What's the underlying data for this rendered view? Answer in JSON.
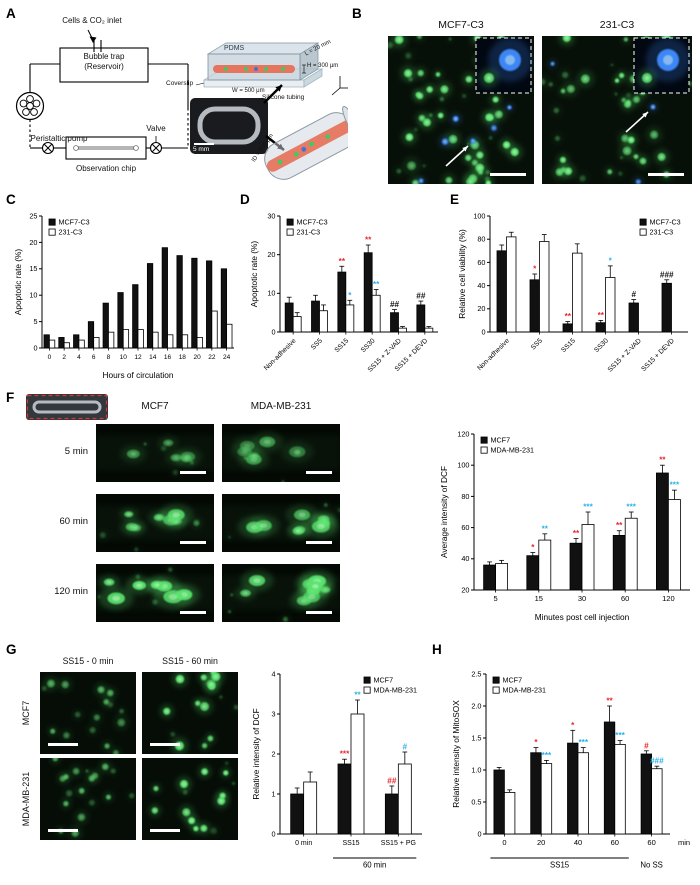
{
  "panels": {
    "A": {
      "label": "A"
    },
    "B": {
      "label": "B",
      "img1_title": "MCF7-C3",
      "img2_title": "231-C3"
    },
    "C": {
      "label": "C"
    },
    "D": {
      "label": "D"
    },
    "E": {
      "label": "E"
    },
    "F": {
      "label": "F",
      "col1": "MCF7",
      "col2": "MDA-MB-231",
      "rows": [
        "5 min",
        "60 min",
        "120 min"
      ]
    },
    "G": {
      "label": "G",
      "col1": "SS15 - 0 min",
      "col2": "SS15 - 60 min",
      "row1": "MCF7",
      "row2": "MDA-MB-231"
    },
    "H": {
      "label": "H"
    }
  },
  "schematic": {
    "inlet": "Cells & CO₂ inlet",
    "bubble_trap": "Bubble trap",
    "reservoir": "(Reservoir)",
    "pump": "Peristaltic pump",
    "valve": "Valve",
    "chip": "Observation chip",
    "pdms": "PDMS",
    "coverslip": "Coverslip",
    "dim_h": "H = 300 μm",
    "dim_w": "W = 500 μm",
    "dim_l": "L = 20 mm",
    "photo_scale": "5 mm",
    "tubing": "Silicone tubing",
    "dim_id": "ID = 500 μm"
  },
  "colors": {
    "sig_red": "#e8262a",
    "sig_blue": "#2bb0e8",
    "bar_black": "#111111",
    "bar_white": "#ffffff",
    "fluor_green": "#5ae36e",
    "fluor_blue": "#3f8cff"
  },
  "chart_data": [
    {
      "id": "C",
      "type": "bar",
      "ylabel": "Apoptotic rate (%)",
      "xlabel": "Hours of circulation",
      "ylim": [
        0,
        25
      ],
      "yticks": [
        0,
        5,
        10,
        15,
        20,
        25
      ],
      "categories": [
        "0",
        "2",
        "4",
        "6",
        "8",
        "10",
        "12",
        "14",
        "16",
        "18",
        "20",
        "22",
        "24"
      ],
      "legend_pos": "top-left",
      "series": [
        {
          "name": "MCF7-C3",
          "fill": "black",
          "values": [
            2.5,
            2.0,
            2.5,
            5.0,
            8.5,
            10.5,
            12.0,
            16.0,
            19.0,
            17.5,
            17.0,
            16.5,
            15.0
          ]
        },
        {
          "name": "231-C3",
          "fill": "white",
          "values": [
            1.5,
            1.0,
            1.5,
            2.0,
            3.0,
            3.5,
            3.5,
            3.0,
            2.5,
            2.5,
            2.0,
            7.0,
            4.5
          ]
        }
      ]
    },
    {
      "id": "D",
      "type": "bar",
      "ylabel": "Apoptotic rate (%)",
      "xlabel": "",
      "ylim": [
        0,
        30
      ],
      "yticks": [
        0,
        10,
        20,
        30
      ],
      "categories": [
        "Non-adhesive",
        "SS5",
        "SS15",
        "SS30",
        "SS15 + Z-VAD",
        "SS15 + DEVD"
      ],
      "legend_pos": "top-left",
      "series": [
        {
          "name": "MCF7-C3",
          "fill": "black",
          "values": [
            7.5,
            8.0,
            15.5,
            20.5,
            5.0,
            7.0
          ],
          "err": [
            1.5,
            1.5,
            1.5,
            2.0,
            0.8,
            1.0
          ],
          "sig": [
            "",
            "",
            "**",
            "**",
            "##",
            "##"
          ],
          "sigc": [
            "",
            "",
            "red",
            "red",
            "black",
            "black"
          ]
        },
        {
          "name": "231-C3",
          "fill": "white",
          "values": [
            4.0,
            5.5,
            7.0,
            9.5,
            1.0,
            1.0
          ],
          "err": [
            1.0,
            1.5,
            1.2,
            1.5,
            0.4,
            0.4
          ],
          "sig": [
            "",
            "",
            "*",
            "**",
            "",
            ""
          ],
          "sigc": [
            "",
            "",
            "blue",
            "blue",
            "",
            ""
          ]
        }
      ]
    },
    {
      "id": "E",
      "type": "bar",
      "ylabel": "Relative cell viability (%)",
      "xlabel": "",
      "ylim": [
        0,
        100
      ],
      "yticks": [
        0,
        20,
        40,
        60,
        80,
        100
      ],
      "categories": [
        "Non-adhesive",
        "SS5",
        "SS15",
        "SS30",
        "SS15 + Z-VAD",
        "SS15 + DEVD"
      ],
      "legend_pos": "top-right",
      "series": [
        {
          "name": "MCF7-C3",
          "fill": "black",
          "values": [
            70,
            45,
            7,
            8,
            25,
            42
          ],
          "err": [
            5,
            5,
            2,
            2,
            3,
            3
          ],
          "sig": [
            "",
            "*",
            "**",
            "**",
            "#",
            "###"
          ],
          "sigc": [
            "",
            "red",
            "red",
            "red",
            "black",
            "black"
          ]
        },
        {
          "name": "231-C3",
          "fill": "white",
          "values": [
            82,
            78,
            68,
            47,
            null,
            null
          ],
          "err": [
            4,
            6,
            8,
            10,
            null,
            null
          ],
          "sig": [
            "",
            "",
            "",
            "*",
            "",
            ""
          ],
          "sigc": [
            "",
            "",
            "",
            "blue",
            "",
            ""
          ]
        }
      ]
    },
    {
      "id": "F",
      "type": "bar",
      "ylabel": "Average intensity of DCF",
      "xlabel": "Minutes post cell injection",
      "ylim": [
        20,
        120
      ],
      "yticks": [
        20,
        40,
        60,
        80,
        100,
        120
      ],
      "categories": [
        "5",
        "15",
        "30",
        "60",
        "120"
      ],
      "legend_pos": "top-left",
      "series": [
        {
          "name": "MCF7",
          "fill": "black",
          "values": [
            36,
            42,
            50,
            55,
            95
          ],
          "err": [
            2,
            2,
            3,
            3,
            5
          ],
          "sig": [
            "",
            "*",
            "**",
            "**",
            "**"
          ],
          "sigc": [
            "",
            "red",
            "red",
            "red",
            "red"
          ]
        },
        {
          "name": "MDA-MB-231",
          "fill": "white",
          "values": [
            37,
            52,
            62,
            66,
            78
          ],
          "err": [
            2,
            4,
            8,
            4,
            6
          ],
          "sig": [
            "",
            "**",
            "***",
            "***",
            "***"
          ],
          "sigc": [
            "",
            "blue",
            "blue",
            "blue",
            "blue"
          ]
        }
      ]
    },
    {
      "id": "G",
      "type": "bar",
      "ylabel": "Relative intensity of DCF",
      "xlabel": "",
      "ylim": [
        0,
        4
      ],
      "yticks": [
        0,
        1,
        2,
        3,
        4
      ],
      "categories": [
        "0 min",
        "SS15",
        "SS15 + PG"
      ],
      "legend_pos": "top-right",
      "groups": [
        {
          "from": 1,
          "to": 2,
          "label": "60 min",
          "line": true
        }
      ],
      "series": [
        {
          "name": "MCF7",
          "fill": "black",
          "values": [
            1.0,
            1.75,
            1.0
          ],
          "err": [
            0.15,
            0.12,
            0.2
          ],
          "sig": [
            "",
            "***",
            "##"
          ],
          "sigc": [
            "",
            "red",
            "red"
          ]
        },
        {
          "name": "MDA-MB-231",
          "fill": "white",
          "values": [
            1.3,
            3.0,
            1.75
          ],
          "err": [
            0.25,
            0.35,
            0.3
          ],
          "sig": [
            "",
            "**",
            "#"
          ],
          "sigc": [
            "",
            "blue",
            "blue"
          ]
        }
      ]
    },
    {
      "id": "H",
      "type": "bar",
      "ylabel": "Relative intensity of MitoSOX",
      "xlabel": "",
      "xunit": "min",
      "ylim": [
        0,
        2.5
      ],
      "yticks": [
        0,
        0.5,
        1.0,
        1.5,
        2.0,
        2.5
      ],
      "categories": [
        "0",
        "20",
        "40",
        "60",
        "60"
      ],
      "legend_pos": "top-left",
      "groups": [
        {
          "from": 0,
          "to": 3,
          "label": "SS15",
          "line": true
        },
        {
          "from": 4,
          "to": 4,
          "label": "No SS",
          "line": false
        }
      ],
      "series": [
        {
          "name": "MCF7",
          "fill": "black",
          "values": [
            1.0,
            1.27,
            1.42,
            1.75,
            1.25
          ],
          "err": [
            0.04,
            0.08,
            0.2,
            0.25,
            0.05
          ],
          "sig": [
            "",
            "*",
            "*",
            "**",
            "#"
          ],
          "sigc": [
            "",
            "red",
            "red",
            "red",
            "red"
          ]
        },
        {
          "name": "MDA-MB-231",
          "fill": "white",
          "values": [
            0.65,
            1.1,
            1.27,
            1.4,
            1.02
          ],
          "err": [
            0.04,
            0.05,
            0.08,
            0.06,
            0.04
          ],
          "sig": [
            "",
            "***",
            "***",
            "***",
            "###"
          ],
          "sigc": [
            "",
            "blue",
            "blue",
            "blue",
            "blue"
          ]
        }
      ]
    }
  ]
}
